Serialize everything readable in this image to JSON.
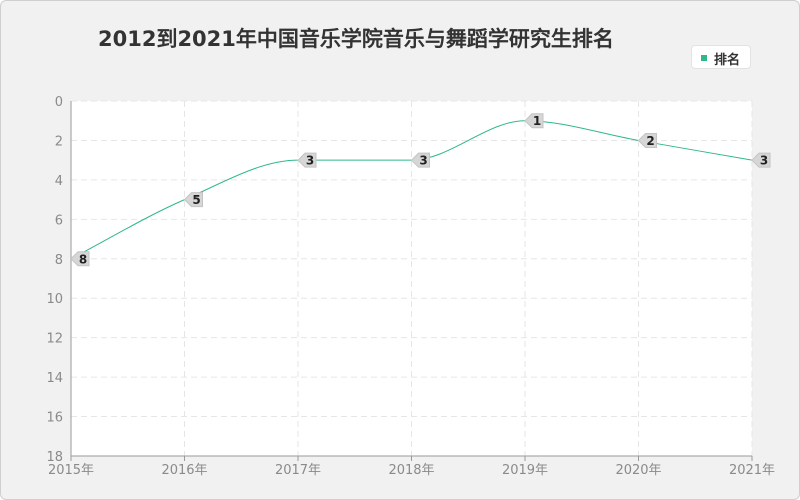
{
  "chart_data": {
    "type": "line",
    "title": "2012到2021年中国音乐学院音乐与舞蹈学研究生排名",
    "x": [
      "2015年",
      "2016年",
      "2017年",
      "2018年",
      "2019年",
      "2020年",
      "2021年"
    ],
    "series": [
      {
        "name": "排名",
        "values": [
          8,
          5,
          3,
          3,
          1,
          2,
          3
        ]
      }
    ],
    "ylim": [
      0,
      18
    ],
    "y_ticks": [
      "0",
      "2",
      "4",
      "6",
      "8",
      "10",
      "12",
      "14",
      "16",
      "18"
    ],
    "y_inverted": true,
    "grid": true,
    "legend_position": "top-right",
    "series_color": "#2eb88a"
  }
}
